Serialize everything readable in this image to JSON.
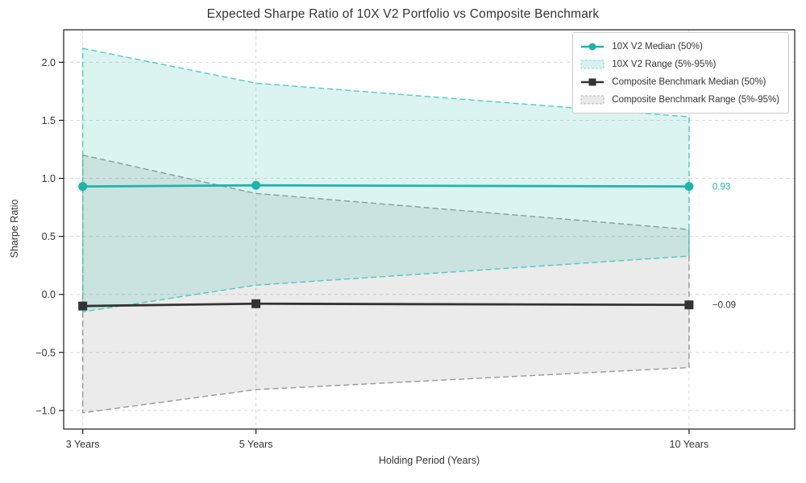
{
  "chart_data": {
    "type": "line",
    "title": "Expected Sharpe Ratio of 10X V2 Portfolio vs Composite Benchmark",
    "xlabel": "Holding Period (Years)",
    "ylabel": "Sharpe Ratio",
    "x": [
      3,
      5,
      10
    ],
    "x_tick_labels": [
      "3 Years",
      "5 Years",
      "10 Years"
    ],
    "yticks": [
      -1.0,
      -0.5,
      0.0,
      0.5,
      1.0,
      1.5,
      2.0
    ],
    "ytick_labels": [
      "−1.0",
      "−0.5",
      "0.0",
      "0.5",
      "1.0",
      "1.5",
      "2.0"
    ],
    "xlim": [
      2.78,
      11.22
    ],
    "ylim": [
      -1.16,
      2.28
    ],
    "grid": true,
    "legend_position": "upper right",
    "series": [
      {
        "name": "10X V2 Median (50%)",
        "kind": "line",
        "marker": "circle",
        "color": "#1db4aa",
        "values": [
          0.93,
          0.94,
          0.93
        ],
        "end_label": "0.93"
      },
      {
        "name": "10X V2 Range (5%-95%)",
        "kind": "band",
        "color": "#1db4aa",
        "edge_color": "#3ec6bc",
        "fill_opacity": 0.16,
        "legend_swatch": "#daf1ef",
        "lower": [
          -0.15,
          0.08,
          0.33
        ],
        "upper": [
          2.12,
          1.82,
          1.53
        ]
      },
      {
        "name": "Composite Benchmark Median (50%)",
        "kind": "line",
        "marker": "square",
        "color": "#333333",
        "values": [
          -0.1,
          -0.08,
          -0.09
        ],
        "end_label": "−0.09"
      },
      {
        "name": "Composite Benchmark Range (5%-95%)",
        "kind": "band",
        "color": "#777777",
        "edge_color": "#8e8e8e",
        "fill_opacity": 0.15,
        "legend_swatch": "#e9e9e9",
        "lower": [
          -1.02,
          -0.82,
          -0.63
        ],
        "upper": [
          1.2,
          0.87,
          0.56
        ]
      }
    ],
    "colors": {
      "grid": "#d8d8d8",
      "spine": "#1a1a1a",
      "portfolio": "#1db4aa",
      "benchmark": "#333333"
    }
  }
}
